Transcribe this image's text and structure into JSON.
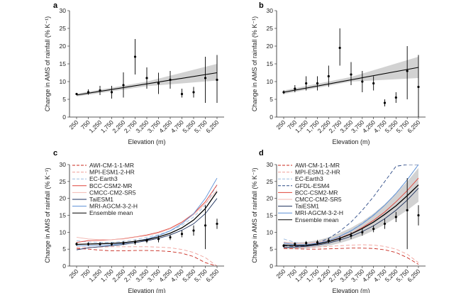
{
  "chart_data": [
    {
      "panel": "a",
      "type": "scatter",
      "xlabel": "Elevation (m)",
      "ylabel": "Change in AMS of rainfall (% K⁻¹)",
      "xticks": [
        "250",
        "750",
        "1,250",
        "1,750",
        "2,250",
        "2,750",
        "3,250",
        "3,750",
        "4,250",
        "4,750",
        "5,250",
        "5,750",
        "6,250"
      ],
      "yticks": [
        0,
        5,
        10,
        15,
        20,
        25,
        30
      ],
      "ylim": [
        0,
        30
      ],
      "points": [
        {
          "x": 250,
          "y": 6.5,
          "lo": 6.2,
          "hi": 6.8
        },
        {
          "x": 750,
          "y": 7.0,
          "lo": 6.3,
          "hi": 7.8
        },
        {
          "x": 1250,
          "y": 7.5,
          "lo": 6.2,
          "hi": 8.8
        },
        {
          "x": 1750,
          "y": 7.0,
          "lo": 5.2,
          "hi": 8.8
        },
        {
          "x": 2250,
          "y": 9.0,
          "lo": 5.5,
          "hi": 12.6
        },
        {
          "x": 2750,
          "y": 17.0,
          "lo": 12.0,
          "hi": 22.0
        },
        {
          "x": 3250,
          "y": 11.0,
          "lo": 8.0,
          "hi": 14.0
        },
        {
          "x": 3750,
          "y": 9.5,
          "lo": 6.5,
          "hi": 12.5
        },
        {
          "x": 4250,
          "y": 10.5,
          "lo": 8.0,
          "hi": 13.0
        },
        {
          "x": 4750,
          "y": 6.5,
          "lo": 5.5,
          "hi": 8.0
        },
        {
          "x": 5250,
          "y": 7.0,
          "lo": 5.5,
          "hi": 8.5
        },
        {
          "x": 5750,
          "y": 11.0,
          "lo": 4.0,
          "hi": 17.0
        },
        {
          "x": 6250,
          "y": 10.5,
          "lo": 4.0,
          "hi": 17.5
        }
      ],
      "fit": {
        "x": [
          250,
          6250
        ],
        "y": [
          6.2,
          12.5
        ],
        "band": [
          [
            250,
            5.8,
            6.6
          ],
          [
            3250,
            8.7,
            10.0
          ],
          [
            6250,
            10.3,
            15.0
          ]
        ]
      }
    },
    {
      "panel": "b",
      "type": "scatter",
      "xlabel": "Elevation (m)",
      "ylabel": "Change in AMS of rainfall (% K⁻¹)",
      "xticks": [
        "250",
        "750",
        "1,250",
        "1,750",
        "2,250",
        "2,750",
        "3,250",
        "3,750",
        "4,250",
        "4,750",
        "5,250",
        "5,750",
        "6,250"
      ],
      "yticks": [
        0,
        5,
        10,
        15,
        20,
        25,
        30
      ],
      "ylim": [
        0,
        30
      ],
      "points": [
        {
          "x": 250,
          "y": 7.0,
          "lo": 6.5,
          "hi": 7.5
        },
        {
          "x": 750,
          "y": 8.0,
          "lo": 7.0,
          "hi": 9.0
        },
        {
          "x": 1250,
          "y": 9.5,
          "lo": 7.5,
          "hi": 11.5
        },
        {
          "x": 1750,
          "y": 9.5,
          "lo": 7.5,
          "hi": 11.5
        },
        {
          "x": 2250,
          "y": 11.5,
          "lo": 8.5,
          "hi": 14.5
        },
        {
          "x": 2750,
          "y": 19.5,
          "lo": 14.5,
          "hi": 25.0
        },
        {
          "x": 3250,
          "y": 12.0,
          "lo": 9.0,
          "hi": 15.5
        },
        {
          "x": 3750,
          "y": 10.0,
          "lo": 7.0,
          "hi": 13.0
        },
        {
          "x": 4250,
          "y": 9.5,
          "lo": 7.5,
          "hi": 11.5
        },
        {
          "x": 4750,
          "y": 4.0,
          "lo": 3.0,
          "hi": 5.0
        },
        {
          "x": 5250,
          "y": 5.5,
          "lo": 4.0,
          "hi": 7.0
        },
        {
          "x": 5750,
          "y": 13.0,
          "lo": 5.0,
          "hi": 20.0
        },
        {
          "x": 6250,
          "y": 8.5,
          "lo": 0.0,
          "hi": 17.5
        }
      ],
      "fit": {
        "x": [
          250,
          6250
        ],
        "y": [
          7.0,
          14.0
        ],
        "band": [
          [
            250,
            6.5,
            7.5
          ],
          [
            3250,
            10.0,
            11.3
          ],
          [
            6250,
            11.0,
            17.0
          ]
        ]
      }
    },
    {
      "panel": "c",
      "type": "line",
      "xlabel": "Elevation (m)",
      "ylabel": "Change in AMS of rainfall (% K⁻¹)",
      "xticks": [
        "250",
        "750",
        "1,250",
        "1,750",
        "2,250",
        "2,750",
        "3,250",
        "3,750",
        "4,250",
        "4,750",
        "5,250",
        "5,750",
        "6,250"
      ],
      "yticks": [
        0,
        5,
        10,
        15,
        20,
        25,
        30
      ],
      "ylim": [
        0,
        30
      ],
      "legend": [
        "AWI-CM-1-1-MR",
        "MPI-ESM1-2-HR",
        "EC-Earth3",
        "BCC-CSM2-MR",
        "CMCC-CM2-SR5",
        "TaiESM1",
        "MRI-AGCM-3-2-H",
        "Ensemble mean"
      ],
      "series": [
        {
          "name": "AWI-CM-1-1-MR",
          "style": "dash",
          "color": "#c8281e",
          "y": [
            5.2,
            5.0,
            4.7,
            4.5,
            4.5,
            4.6,
            4.6,
            4.5,
            4.3,
            3.8,
            2.8,
            1.0,
            -1.5
          ]
        },
        {
          "name": "MPI-ESM1-2-HR",
          "style": "dash",
          "color": "#f0a09a",
          "y": [
            5.5,
            5.5,
            5.6,
            5.7,
            5.7,
            5.7,
            5.7,
            5.6,
            5.4,
            4.9,
            4.0,
            2.5,
            0.0
          ]
        },
        {
          "name": "EC-Earth3",
          "style": "dash",
          "color": "#9dbce0",
          "y": [
            7.5,
            7.1,
            7.0,
            7.0,
            7.3,
            7.8,
            8.5,
            9.3,
            10.4,
            12.0,
            14.5,
            18.0,
            24.0
          ]
        },
        {
          "name": "BCC-CSM2-MR",
          "style": "solid",
          "color": "#e0443a",
          "y": [
            7.0,
            7.5,
            7.6,
            7.8,
            8.1,
            8.6,
            9.2,
            10.0,
            11.2,
            13.0,
            15.5,
            19.0,
            24.0
          ]
        },
        {
          "name": "CMCC-CM2-SR5",
          "style": "solid",
          "color": "#f2b8b3",
          "y": [
            8.5,
            8.0,
            7.8,
            7.8,
            8.0,
            8.5,
            9.0,
            9.8,
            11.0,
            12.8,
            15.2,
            18.5,
            22.5
          ]
        },
        {
          "name": "TaiESM1",
          "style": "solid",
          "color": "#1b2f5c",
          "y": [
            4.8,
            5.4,
            5.7,
            6.0,
            6.4,
            6.9,
            7.5,
            8.2,
            9.2,
            10.6,
            12.5,
            15.5,
            20.0
          ]
        },
        {
          "name": "MRI-AGCM-3-2-H",
          "style": "solid",
          "color": "#5b8fd6",
          "y": [
            6.0,
            6.0,
            6.1,
            6.3,
            6.7,
            7.3,
            8.0,
            9.0,
            10.4,
            12.5,
            15.5,
            20.0,
            26.0
          ]
        },
        {
          "name": "Ensemble mean",
          "style": "solid",
          "color": "#000000",
          "y": [
            6.4,
            6.5,
            6.6,
            6.7,
            6.9,
            7.3,
            7.8,
            8.6,
            9.7,
            11.3,
            13.6,
            17.0,
            22.0
          ]
        }
      ],
      "points": [
        {
          "x": 250,
          "y": 6.5,
          "lo": 6.0,
          "hi": 7.0
        },
        {
          "x": 750,
          "y": 6.5,
          "lo": 6.0,
          "hi": 7.0
        },
        {
          "x": 1250,
          "y": 6.5,
          "lo": 6.0,
          "hi": 7.0
        },
        {
          "x": 1750,
          "y": 6.5,
          "lo": 6.0,
          "hi": 7.0
        },
        {
          "x": 2250,
          "y": 6.8,
          "lo": 6.2,
          "hi": 7.4
        },
        {
          "x": 2750,
          "y": 7.0,
          "lo": 6.3,
          "hi": 7.7
        },
        {
          "x": 3250,
          "y": 7.5,
          "lo": 6.8,
          "hi": 8.2
        },
        {
          "x": 3750,
          "y": 8.0,
          "lo": 7.0,
          "hi": 9.0
        },
        {
          "x": 4250,
          "y": 8.5,
          "lo": 7.7,
          "hi": 9.3
        },
        {
          "x": 4750,
          "y": 9.5,
          "lo": 8.5,
          "hi": 10.5
        },
        {
          "x": 5250,
          "y": 10.5,
          "lo": 9.0,
          "hi": 12.0
        },
        {
          "x": 5750,
          "y": 12.0,
          "lo": 5.0,
          "hi": 18.0
        },
        {
          "x": 6250,
          "y": 12.5,
          "lo": 11.0,
          "hi": 14.0
        }
      ]
    },
    {
      "panel": "d",
      "type": "line",
      "xlabel": "Elevation (m)",
      "ylabel": "Change in AMS of rainfall (% K⁻¹)",
      "xticks": [
        "250",
        "750",
        "1,250",
        "1,750",
        "2,250",
        "2,750",
        "3,250",
        "3,750",
        "4,250",
        "4,750",
        "5,250",
        "5,750",
        "6,250"
      ],
      "yticks": [
        0,
        5,
        10,
        15,
        20,
        25,
        30
      ],
      "ylim": [
        0,
        30
      ],
      "legend": [
        "AWI-CM-1-1-MR",
        "MPI-ESM1-2-HR",
        "EC-Earth3",
        "GFDL-ESM4",
        "BCC-CSM2-MR",
        "CMCC-CM2-SR5",
        "TaiESM1",
        "MRI-AGCM-3-2-H",
        "Ensemble mean"
      ],
      "series": [
        {
          "name": "AWI-CM-1-1-MR",
          "style": "dash",
          "color": "#c8281e",
          "y": [
            5.2,
            5.1,
            5.0,
            5.0,
            5.1,
            5.2,
            5.3,
            5.3,
            5.2,
            4.8,
            4.0,
            2.5,
            0.5
          ]
        },
        {
          "name": "MPI-ESM1-2-HR",
          "style": "dash",
          "color": "#f0a09a",
          "y": [
            5.5,
            5.5,
            5.5,
            5.6,
            5.8,
            6.0,
            6.2,
            6.3,
            6.2,
            5.8,
            5.0,
            3.5,
            1.0
          ]
        },
        {
          "name": "EC-Earth3",
          "style": "dash",
          "color": "#9dbce0",
          "y": [
            8.0,
            7.0,
            6.6,
            6.8,
            7.5,
            8.8,
            10.5,
            12.7,
            15.2,
            18.0,
            21.5,
            25.5,
            30.0
          ]
        },
        {
          "name": "GFDL-ESM4",
          "style": "dash",
          "color": "#2c4a86",
          "y": [
            6.0,
            5.8,
            6.0,
            6.8,
            8.2,
            10.3,
            13.0,
            16.5,
            20.5,
            25.0,
            29.5,
            30.0,
            30.0
          ]
        },
        {
          "name": "BCC-CSM2-MR",
          "style": "solid",
          "color": "#e0443a",
          "y": [
            6.2,
            6.0,
            6.1,
            6.5,
            7.2,
            8.2,
            9.6,
            11.4,
            13.5,
            16.0,
            19.0,
            22.3,
            26.0
          ]
        },
        {
          "name": "CMCC-CM2-SR5",
          "style": "solid",
          "color": "#f2b8b3",
          "y": [
            7.0,
            6.7,
            6.7,
            7.0,
            7.6,
            8.5,
            9.7,
            11.2,
            13.0,
            15.2,
            17.8,
            20.8,
            24.0
          ]
        },
        {
          "name": "TaiESM1",
          "style": "solid",
          "color": "#1b2f5c",
          "y": [
            5.5,
            5.6,
            5.8,
            6.2,
            6.8,
            7.7,
            8.8,
            10.2,
            11.9,
            14.0,
            16.5,
            19.5,
            23.0
          ]
        },
        {
          "name": "MRI-AGCM-3-2-H",
          "style": "solid",
          "color": "#5b8fd6",
          "y": [
            6.8,
            6.3,
            6.3,
            6.7,
            7.5,
            8.8,
            10.4,
            12.5,
            15.0,
            18.0,
            21.5,
            25.5,
            30.0
          ]
        },
        {
          "name": "Ensemble mean",
          "style": "solid",
          "color": "#000000",
          "y": [
            6.2,
            6.0,
            6.1,
            6.5,
            7.2,
            8.2,
            9.5,
            11.1,
            13.0,
            15.3,
            17.8,
            20.8,
            24.0
          ]
        }
      ],
      "points": [
        {
          "x": 250,
          "y": 6.0,
          "lo": 5.5,
          "hi": 6.5
        },
        {
          "x": 750,
          "y": 6.5,
          "lo": 6.0,
          "hi": 7.0
        },
        {
          "x": 1250,
          "y": 6.8,
          "lo": 6.2,
          "hi": 7.4
        },
        {
          "x": 1750,
          "y": 7.0,
          "lo": 6.3,
          "hi": 7.7
        },
        {
          "x": 2250,
          "y": 7.5,
          "lo": 6.7,
          "hi": 8.3
        },
        {
          "x": 2750,
          "y": 8.0,
          "lo": 7.2,
          "hi": 8.8
        },
        {
          "x": 3250,
          "y": 9.0,
          "lo": 8.0,
          "hi": 10.0
        },
        {
          "x": 3750,
          "y": 10.0,
          "lo": 9.0,
          "hi": 11.0
        },
        {
          "x": 4250,
          "y": 11.0,
          "lo": 10.0,
          "hi": 12.0
        },
        {
          "x": 4750,
          "y": 12.5,
          "lo": 11.0,
          "hi": 14.0
        },
        {
          "x": 5250,
          "y": 14.5,
          "lo": 13.0,
          "hi": 16.0
        },
        {
          "x": 5750,
          "y": 16.5,
          "lo": 5.0,
          "hi": 26.0
        },
        {
          "x": 6250,
          "y": 15.0,
          "lo": 12.0,
          "hi": 18.0
        }
      ],
      "band": {
        "lo": [
          5.0,
          5.0,
          5.2,
          5.5,
          6.0,
          6.8,
          7.8,
          9.0,
          10.5,
          12.3,
          14.3,
          16.5,
          19.0
        ],
        "hi": [
          7.2,
          7.0,
          7.1,
          7.6,
          8.5,
          9.8,
          11.3,
          13.2,
          15.5,
          18.3,
          21.5,
          25.0,
          29.0
        ]
      }
    }
  ]
}
